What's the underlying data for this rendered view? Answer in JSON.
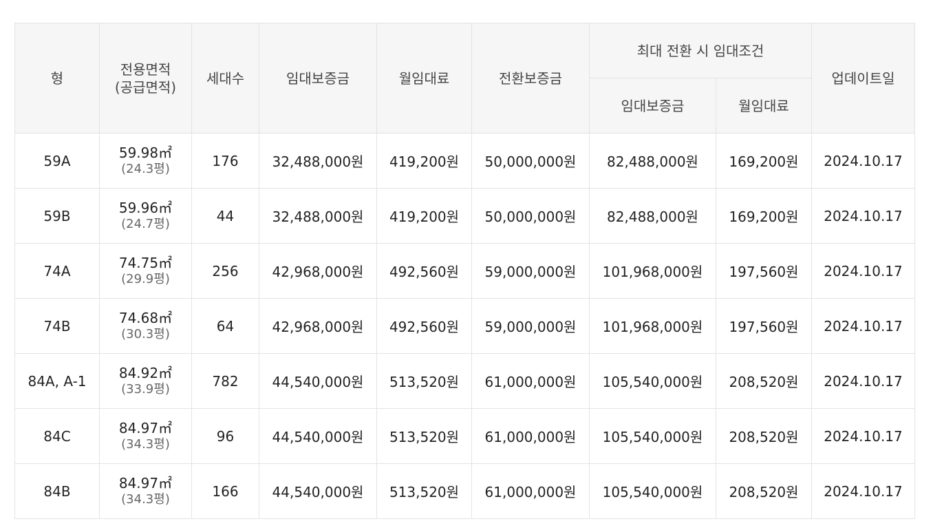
{
  "header": {
    "type": "형",
    "area_line1": "전용면적",
    "area_line2": "(공급면적)",
    "households": "세대수",
    "deposit": "임대보증금",
    "monthly_rent": "월임대료",
    "conversion_deposit": "전환보증금",
    "max_conversion_group": "최대 전환 시 임대조건",
    "max_deposit": "임대보증금",
    "max_monthly_rent": "월임대료",
    "updated": "업데이트일"
  },
  "rows": [
    {
      "type": "59A",
      "area": "59.98㎡",
      "pyeong": "(24.3평)",
      "households": "176",
      "deposit": "32,488,000원",
      "rent": "419,200원",
      "conversion": "50,000,000원",
      "max_deposit": "82,488,000원",
      "max_rent": "169,200원",
      "updated": "2024.10.17"
    },
    {
      "type": "59B",
      "area": "59.96㎡",
      "pyeong": "(24.7평)",
      "households": "44",
      "deposit": "32,488,000원",
      "rent": "419,200원",
      "conversion": "50,000,000원",
      "max_deposit": "82,488,000원",
      "max_rent": "169,200원",
      "updated": "2024.10.17"
    },
    {
      "type": "74A",
      "area": "74.75㎡",
      "pyeong": "(29.9평)",
      "households": "256",
      "deposit": "42,968,000원",
      "rent": "492,560원",
      "conversion": "59,000,000원",
      "max_deposit": "101,968,000원",
      "max_rent": "197,560원",
      "updated": "2024.10.17"
    },
    {
      "type": "74B",
      "area": "74.68㎡",
      "pyeong": "(30.3평)",
      "households": "64",
      "deposit": "42,968,000원",
      "rent": "492,560원",
      "conversion": "59,000,000원",
      "max_deposit": "101,968,000원",
      "max_rent": "197,560원",
      "updated": "2024.10.17"
    },
    {
      "type": "84A, A-1",
      "area": "84.92㎡",
      "pyeong": "(33.9평)",
      "households": "782",
      "deposit": "44,540,000원",
      "rent": "513,520원",
      "conversion": "61,000,000원",
      "max_deposit": "105,540,000원",
      "max_rent": "208,520원",
      "updated": "2024.10.17"
    },
    {
      "type": "84C",
      "area": "84.97㎡",
      "pyeong": "(34.3평)",
      "households": "96",
      "deposit": "44,540,000원",
      "rent": "513,520원",
      "conversion": "61,000,000원",
      "max_deposit": "105,540,000원",
      "max_rent": "208,520원",
      "updated": "2024.10.17"
    },
    {
      "type": "84B",
      "area": "84.97㎡",
      "pyeong": "(34.3평)",
      "households": "166",
      "deposit": "44,540,000원",
      "rent": "513,520원",
      "conversion": "61,000,000원",
      "max_deposit": "105,540,000원",
      "max_rent": "208,520원",
      "updated": "2024.10.17"
    }
  ]
}
